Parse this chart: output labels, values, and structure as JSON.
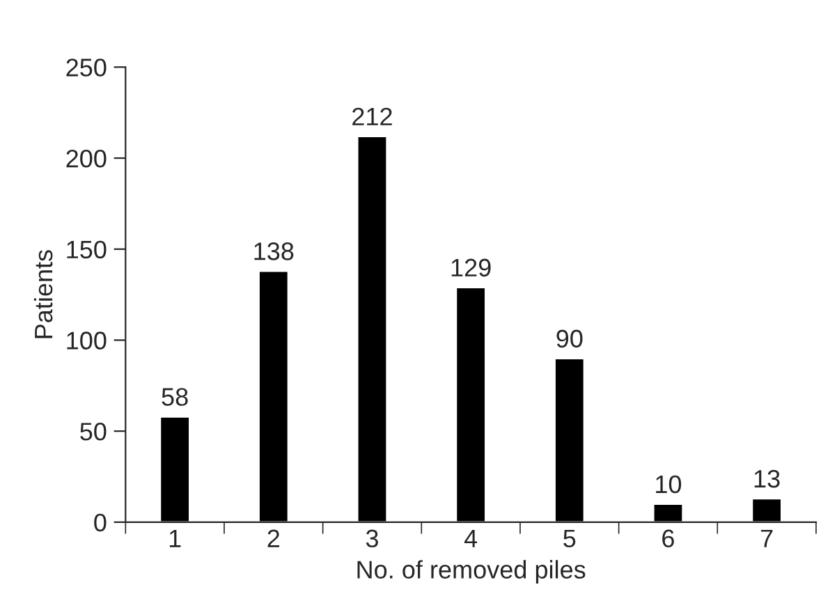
{
  "chart_data": {
    "type": "bar",
    "xlabel": "No. of removed piles",
    "ylabel": "Patients",
    "categories": [
      "1",
      "2",
      "3",
      "4",
      "5",
      "6",
      "7"
    ],
    "values": [
      58,
      138,
      212,
      129,
      90,
      10,
      13
    ],
    "color": "#000000",
    "ylim": [
      0,
      250
    ],
    "yticks": [
      0,
      50,
      100,
      150,
      200,
      250
    ],
    "data_labels": true,
    "grid": false,
    "legend": false
  }
}
